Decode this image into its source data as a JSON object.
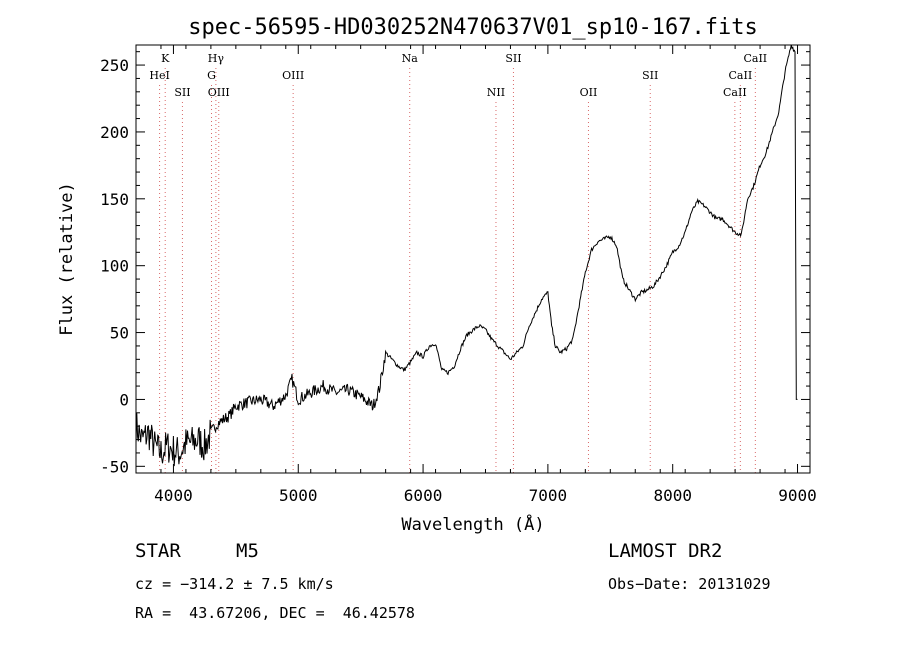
{
  "chart_data": {
    "type": "line",
    "title": "spec-56595-HD030252N470637V01_sp10-167.fits",
    "xlabel": "Wavelength (Å)",
    "ylabel": "Flux (relative)",
    "xlim": [
      3700,
      9100
    ],
    "ylim": [
      -55,
      265
    ],
    "x_ticks": [
      4000,
      5000,
      6000,
      7000,
      8000,
      9000
    ],
    "y_ticks": [
      -50,
      0,
      50,
      100,
      150,
      200,
      250
    ],
    "grid": false,
    "series": [
      {
        "x": [
          3700,
          3750,
          3800,
          3850,
          3900,
          3950,
          4000,
          4050,
          4100,
          4150,
          4200,
          4250,
          4300,
          4350,
          4400,
          4450,
          4500,
          4600,
          4700,
          4800,
          4900,
          4950,
          5000,
          5100,
          5200,
          5300,
          5400,
          5500,
          5600,
          5650,
          5700,
          5750,
          5800,
          5850,
          5900,
          5950,
          6000,
          6050,
          6100,
          6150,
          6200,
          6250,
          6300,
          6350,
          6400,
          6450,
          6500,
          6550,
          6600,
          6650,
          6700,
          6750,
          6800,
          6850,
          6900,
          6950,
          7000,
          7030,
          7060,
          7100,
          7150,
          7200,
          7250,
          7300,
          7350,
          7400,
          7450,
          7500,
          7550,
          7580,
          7600,
          7650,
          7700,
          7750,
          7800,
          7850,
          7900,
          7950,
          8000,
          8050,
          8100,
          8150,
          8200,
          8250,
          8300,
          8350,
          8400,
          8450,
          8500,
          8550,
          8600,
          8650,
          8700,
          8750,
          8800,
          8850,
          8900,
          8950,
          8980,
          8990,
          9000
        ],
        "y": [
          -20,
          -30,
          -25,
          -35,
          -40,
          -35,
          -38,
          -40,
          -33,
          -32,
          -30,
          -35,
          -25,
          -18,
          -15,
          -12,
          -5,
          -2,
          0,
          -5,
          3,
          15,
          0,
          5,
          10,
          5,
          7,
          2,
          -5,
          8,
          35,
          30,
          25,
          22,
          28,
          35,
          32,
          40,
          42,
          22,
          20,
          25,
          38,
          48,
          52,
          55,
          52,
          45,
          40,
          35,
          30,
          35,
          40,
          55,
          65,
          75,
          80,
          55,
          40,
          35,
          38,
          45,
          70,
          95,
          112,
          118,
          120,
          122,
          115,
          100,
          90,
          82,
          75,
          80,
          82,
          85,
          92,
          100,
          110,
          115,
          125,
          140,
          148,
          145,
          140,
          135,
          135,
          130,
          125,
          123,
          150,
          160,
          175,
          185,
          200,
          215,
          245,
          265,
          260,
          0,
          0
        ]
      }
    ],
    "line_markers": [
      {
        "label": "K",
        "wavelength": 3934,
        "row": 0
      },
      {
        "label": "HeI",
        "wavelength": 3889,
        "row": 1
      },
      {
        "label": "SII",
        "wavelength": 4072,
        "row": 2
      },
      {
        "label": "Hγ",
        "wavelength": 4340,
        "row": 0
      },
      {
        "label": "G",
        "wavelength": 4305,
        "row": 1
      },
      {
        "label": "OIII",
        "wavelength": 4363,
        "row": 2
      },
      {
        "label": "OIII",
        "wavelength": 4959,
        "row": 1
      },
      {
        "label": "Na",
        "wavelength": 5893,
        "row": 0
      },
      {
        "label": "SII",
        "wavelength": 6724,
        "row": 0
      },
      {
        "label": "NII",
        "wavelength": 6584,
        "row": 2
      },
      {
        "label": "OII",
        "wavelength": 7325,
        "row": 2
      },
      {
        "label": "SII",
        "wavelength": 7820,
        "row": 1
      },
      {
        "label": "CaII",
        "wavelength": 8662,
        "row": 0
      },
      {
        "label": "CaII",
        "wavelength": 8542,
        "row": 1
      },
      {
        "label": "CaII",
        "wavelength": 8498,
        "row": 2
      }
    ]
  },
  "info": {
    "object_class": "STAR",
    "subclass": "M5",
    "survey": "LAMOST DR2",
    "cz": "cz = −314.2 ± 7.5 km/s",
    "obs_date": "Obs−Date: 20131029",
    "coords": "RA =  43.67206, DEC =  46.42578"
  }
}
